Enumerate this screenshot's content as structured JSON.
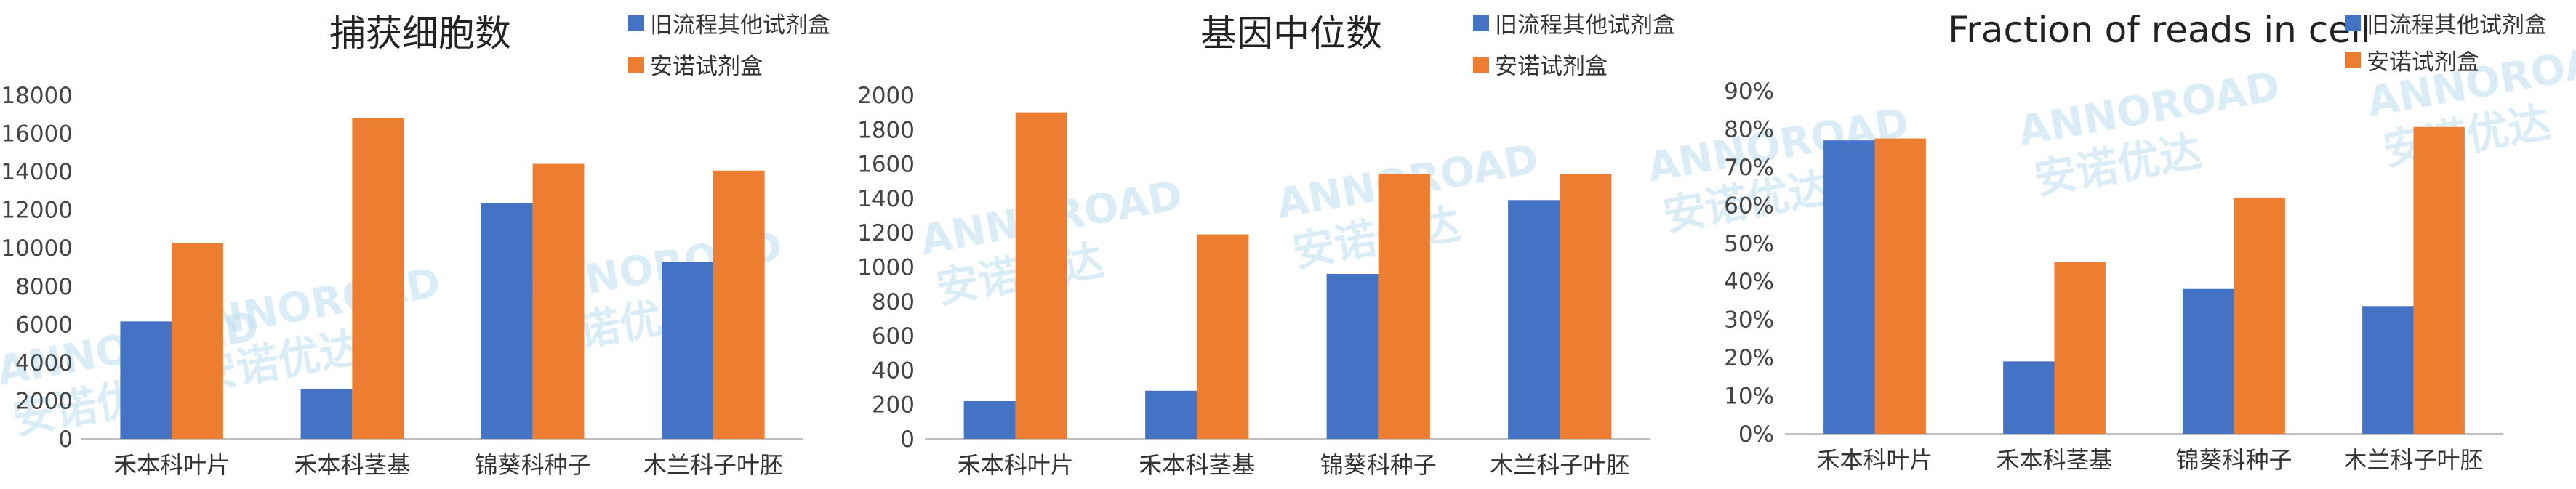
{
  "colors": {
    "old": "#4472C4",
    "new": "#ED7D31",
    "axis": "#bfbfbf",
    "watermark": "#bcdff0"
  },
  "watermark": {
    "brand": "ANNOROAD",
    "cn": "安诺优达"
  },
  "chart_data": [
    {
      "type": "bar",
      "title": "捕获细胞数",
      "categories": [
        "禾本科叶片",
        "禾本科茎基",
        "锦葵科种子",
        "木兰科子叶胚"
      ],
      "series": [
        {
          "name": "旧流程其他试剂盒",
          "values": [
            6150,
            2600,
            12350,
            9250
          ]
        },
        {
          "name": "安诺试剂盒",
          "values": [
            10250,
            16800,
            14400,
            14050
          ]
        }
      ],
      "ylim": [
        0,
        18000
      ],
      "yticks": [
        "0",
        "2000",
        "4000",
        "6000",
        "8000",
        "10000",
        "12000",
        "14000",
        "16000",
        "18000"
      ],
      "grid": false,
      "legend": "top-right"
    },
    {
      "type": "bar",
      "title": "基因中位数",
      "categories": [
        "禾本科叶片",
        "禾本科茎基",
        "锦葵科种子",
        "木兰科子叶胚"
      ],
      "series": [
        {
          "name": "旧流程其他试剂盒",
          "values": [
            220,
            280,
            960,
            1390
          ]
        },
        {
          "name": "安诺试剂盒",
          "values": [
            1900,
            1190,
            1540,
            1540
          ]
        }
      ],
      "ylim": [
        0,
        2000
      ],
      "yticks": [
        "0",
        "200",
        "400",
        "600",
        "800",
        "1000",
        "1200",
        "1400",
        "1600",
        "1800",
        "2000"
      ],
      "grid": false,
      "legend": "top-right"
    },
    {
      "type": "bar",
      "title": "Fraction of reads in cell",
      "categories": [
        "禾本科叶片",
        "禾本科茎基",
        "锦葵科种子",
        "木兰科子叶胚"
      ],
      "series": [
        {
          "name": "旧流程其他试剂盒",
          "values": [
            0.77,
            0.19,
            0.38,
            0.335
          ]
        },
        {
          "name": "安诺试剂盒",
          "values": [
            0.775,
            0.45,
            0.62,
            0.805
          ]
        }
      ],
      "ylim": [
        0,
        0.9
      ],
      "yticks": [
        "0%",
        "10%",
        "20%",
        "30%",
        "40%",
        "50%",
        "60%",
        "70%",
        "80%",
        "90%"
      ],
      "grid": false,
      "legend": "top-right"
    }
  ]
}
